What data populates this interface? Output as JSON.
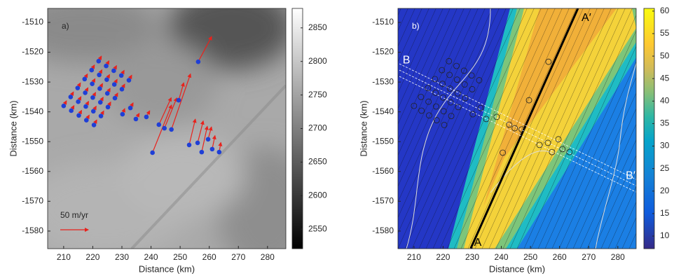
{
  "chart_data": [
    {
      "type": "vector-map",
      "panel_label": "a)",
      "xlabel": "Distance (km)",
      "ylabel": "Distance (km)",
      "xlim": [
        204.5,
        286.3
      ],
      "ylim": [
        -1585.9,
        -1505.3
      ],
      "xticks": [
        210,
        220,
        230,
        240,
        250,
        260,
        270,
        280
      ],
      "yticks": [
        -1510,
        -1520,
        -1530,
        -1540,
        -1550,
        -1560,
        -1570,
        -1580
      ],
      "point_color": "#1f3fd6",
      "arrow_color": "#e8221c",
      "points": [
        [
          222,
          -1523,
          5,
          9
        ],
        [
          224.6,
          -1524.6,
          5,
          9
        ],
        [
          227.2,
          -1526.2,
          5,
          9
        ],
        [
          229.8,
          -1527.8,
          5,
          9
        ],
        [
          232.4,
          -1529.4,
          5,
          9
        ],
        [
          219.6,
          -1526,
          5,
          9
        ],
        [
          222.2,
          -1527.6,
          5,
          9
        ],
        [
          224.8,
          -1529.2,
          5,
          9
        ],
        [
          227.4,
          -1530.8,
          5,
          9
        ],
        [
          230,
          -1532.4,
          5,
          9
        ],
        [
          217.2,
          -1529,
          5,
          9
        ],
        [
          219.8,
          -1530.6,
          5,
          9
        ],
        [
          222.4,
          -1532.2,
          5,
          9
        ],
        [
          225,
          -1533.8,
          5,
          9
        ],
        [
          227.6,
          -1535.4,
          5,
          9
        ],
        [
          214.8,
          -1532,
          5,
          9
        ],
        [
          217.4,
          -1533.6,
          5,
          9
        ],
        [
          220,
          -1535.2,
          5,
          9
        ],
        [
          222.6,
          -1536.8,
          5,
          9
        ],
        [
          225.2,
          -1538.4,
          5,
          9
        ],
        [
          212.4,
          -1535,
          5,
          9
        ],
        [
          215,
          -1536.6,
          5,
          9
        ],
        [
          217.6,
          -1538.2,
          5,
          9
        ],
        [
          220.2,
          -1539.8,
          5,
          9
        ],
        [
          222.8,
          -1541.4,
          5,
          9
        ],
        [
          210,
          -1538,
          5,
          9
        ],
        [
          212.6,
          -1539.6,
          5,
          9
        ],
        [
          215.2,
          -1541.2,
          5,
          9
        ],
        [
          217.8,
          -1542.8,
          5,
          9
        ],
        [
          220.4,
          -1544.4,
          5,
          9
        ],
        [
          230.2,
          -1540.8,
          4,
          10
        ],
        [
          232.9,
          -1538.7,
          5,
          9
        ],
        [
          234.8,
          -1542.4,
          6,
          10
        ],
        [
          238.4,
          -1541.7,
          6,
          11
        ],
        [
          240.5,
          -1553.7,
          34,
          85
        ],
        [
          242.7,
          -1544.3,
          22,
          48
        ],
        [
          244.6,
          -1545.5,
          22,
          54
        ],
        [
          247,
          -1545.9,
          34,
          99
        ],
        [
          249.5,
          -1536.1,
          9,
          31
        ],
        [
          256.2,
          -1523.2,
          24,
          45
        ],
        [
          253.1,
          -1551.1,
          11,
          46
        ],
        [
          256,
          -1550.4,
          10,
          39
        ],
        [
          257.4,
          -1553.5,
          10,
          46
        ],
        [
          259.6,
          -1549.2,
          6,
          22
        ],
        [
          261,
          -1552.5,
          5,
          24
        ],
        [
          263.4,
          -1553.5,
          3,
          17
        ]
      ],
      "scale_arrow": {
        "value": 50,
        "label": "50 m/yr"
      },
      "colorbar": {
        "colormap": "gray",
        "clim": [
          2521,
          2879
        ],
        "ticks": [
          2550,
          2600,
          2650,
          2700,
          2750,
          2800,
          2850
        ]
      }
    },
    {
      "type": "field-map",
      "panel_label": "b)",
      "xlabel": "Distance (km)",
      "ylabel": "Distance (km)",
      "xlim": [
        204.5,
        286.3
      ],
      "ylim": [
        -1585.9,
        -1505.3
      ],
      "xticks": [
        210,
        220,
        230,
        240,
        250,
        260,
        270,
        280
      ],
      "yticks": [
        -1510,
        -1520,
        -1530,
        -1540,
        -1550,
        -1560,
        -1570,
        -1580
      ],
      "profiles": [
        {
          "name": "A",
          "end_name": "A′",
          "color": "#000000",
          "x": [
            229.5,
            266.3
          ],
          "y": [
            -1585.8,
            -1505.3
          ]
        },
        {
          "name": "B",
          "end_name": "B′",
          "color": "#ffffff",
          "x": [
            205,
            286.3
          ],
          "y": [
            -1526,
            -1564.8
          ]
        }
      ],
      "colorbar": {
        "colormap": "parula",
        "clim": [
          7.2,
          60.6
        ],
        "ticks": [
          10,
          15,
          20,
          25,
          30,
          35,
          40,
          45,
          50,
          55,
          60
        ]
      }
    }
  ]
}
